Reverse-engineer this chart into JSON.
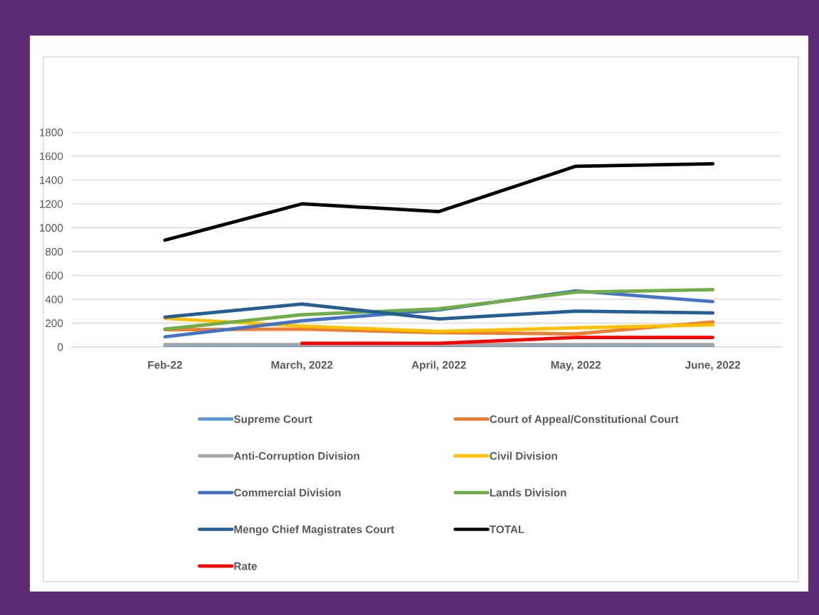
{
  "chart_data": {
    "type": "line",
    "categories": [
      "Feb-22",
      "March, 2022",
      "April, 2022",
      "May, 2022",
      "June, 2022"
    ],
    "series": [
      {
        "name": "Supreme Court",
        "color": "#5b9bd5",
        "values": [
          5,
          5,
          5,
          5,
          5
        ]
      },
      {
        "name": "Court of Appeal/Constitutional Court",
        "color": "#ed7d31",
        "values": [
          145,
          150,
          120,
          110,
          210
        ]
      },
      {
        "name": "Anti-Corruption Division",
        "color": "#a5a5a5",
        "values": [
          20,
          20,
          20,
          20,
          20
        ]
      },
      {
        "name": "Civil Division",
        "color": "#ffc000",
        "values": [
          240,
          175,
          130,
          160,
          185
        ]
      },
      {
        "name": "Commercial Division",
        "color": "#4472c4",
        "values": [
          85,
          220,
          310,
          470,
          380
        ]
      },
      {
        "name": "Lands Division",
        "color": "#70ad47",
        "values": [
          150,
          270,
          320,
          460,
          480
        ]
      },
      {
        "name": "Mengo Chief Magistrates Court",
        "color": "#255e91",
        "values": [
          250,
          360,
          235,
          300,
          285
        ]
      },
      {
        "name": "TOTAL",
        "color": "#000000",
        "values": [
          895,
          1200,
          1135,
          1515,
          1535
        ]
      },
      {
        "name": "Rate",
        "color": "#ff0000",
        "values": [
          null,
          30,
          30,
          80,
          80
        ]
      }
    ],
    "ylim": [
      0,
      1800
    ],
    "yticks": [
      0,
      200,
      400,
      600,
      800,
      1000,
      1200,
      1400,
      1600,
      1800
    ],
    "grid": "y",
    "legend": "bottom",
    "line_style": "solid"
  }
}
